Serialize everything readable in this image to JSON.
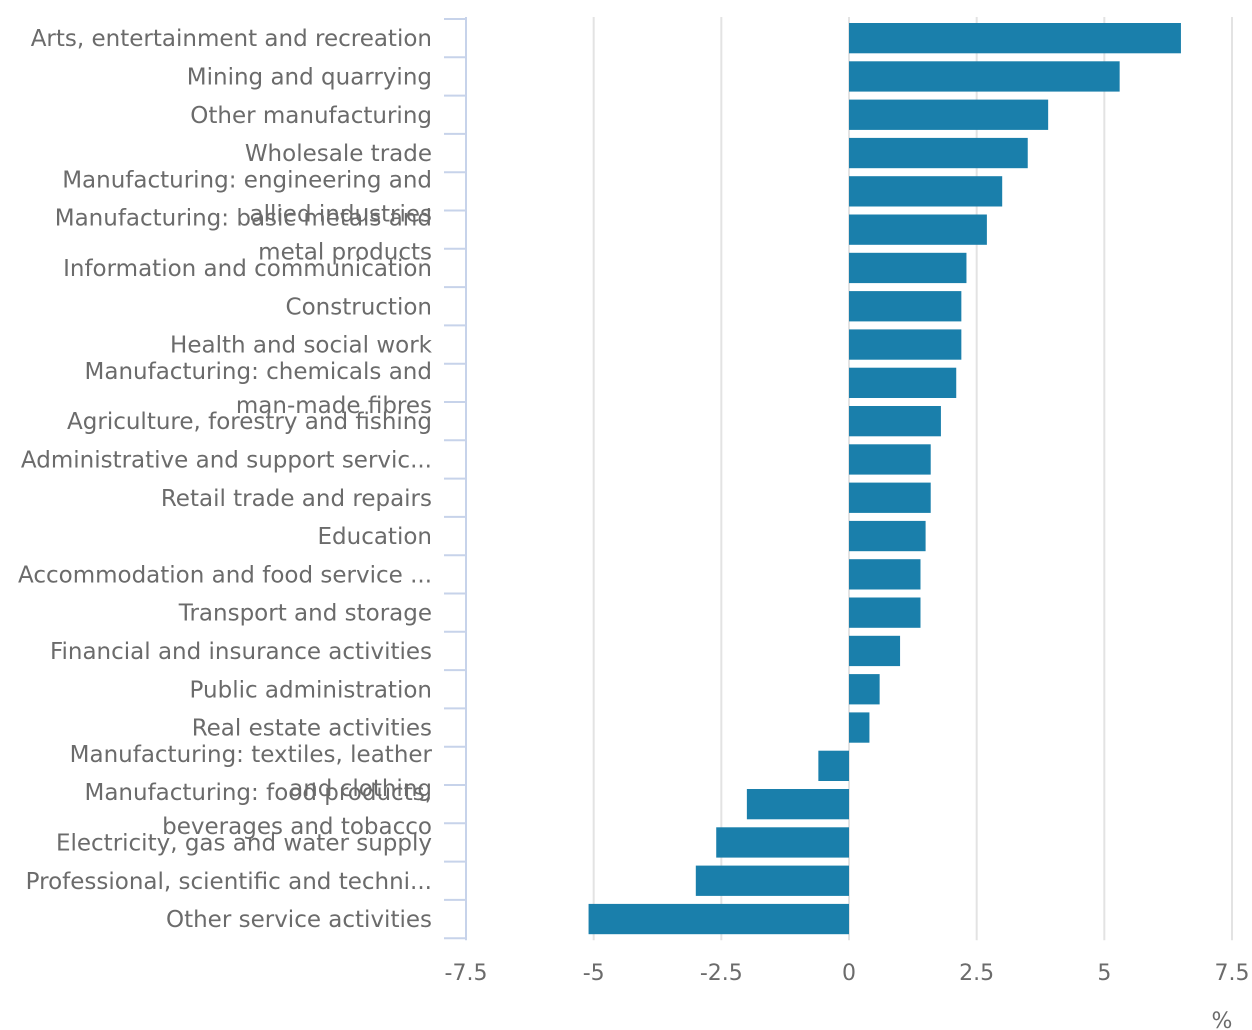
{
  "chart_data": {
    "type": "bar",
    "orientation": "horizontal",
    "categories": [
      "Arts, entertainment and recreation",
      "Mining and quarrying",
      "Other manufacturing",
      "Wholesale trade",
      "Manufacturing: engineering and allied industries",
      "Manufacturing: basic metals and metal products",
      "Information and communication",
      "Construction",
      "Health and social work",
      "Manufacturing: chemicals and man-made fibres",
      "Agriculture, forestry and fishing",
      "Administrative and support servic...",
      "Retail trade and repairs",
      "Education",
      "Accommodation and food service ...",
      "Transport and storage",
      "Financial and insurance activities",
      "Public administration",
      "Real estate activities",
      "Manufacturing: textiles, leather and clothing",
      "Manufacturing: food products, beverages and tobacco",
      "Electricity, gas and water supply",
      "Professional, scientific and techni...",
      "Other service activities"
    ],
    "label_lines": [
      [
        "Arts, entertainment and recreation"
      ],
      [
        "Mining and quarrying"
      ],
      [
        "Other manufacturing"
      ],
      [
        "Wholesale trade"
      ],
      [
        "Manufacturing: engineering and",
        "allied industries"
      ],
      [
        "Manufacturing: basic metals and",
        "metal products"
      ],
      [
        "Information and communication"
      ],
      [
        "Construction"
      ],
      [
        "Health and social work"
      ],
      [
        "Manufacturing: chemicals and",
        "man-made fibres"
      ],
      [
        "Agriculture, forestry and fishing"
      ],
      [
        "Administrative and support servic..."
      ],
      [
        "Retail trade and repairs"
      ],
      [
        "Education"
      ],
      [
        "Accommodation and food service ..."
      ],
      [
        "Transport and storage"
      ],
      [
        "Financial and insurance activities"
      ],
      [
        "Public administration"
      ],
      [
        "Real estate activities"
      ],
      [
        "Manufacturing: textiles, leather",
        "and clothing"
      ],
      [
        "Manufacturing: food products,",
        "beverages and tobacco"
      ],
      [
        "Electricity, gas and water supply"
      ],
      [
        "Professional, scientific and techni..."
      ],
      [
        "Other service activities"
      ]
    ],
    "values": [
      6.5,
      5.3,
      3.9,
      3.5,
      3.0,
      2.7,
      2.3,
      2.2,
      2.2,
      2.1,
      1.8,
      1.6,
      1.6,
      1.5,
      1.4,
      1.4,
      1.0,
      0.6,
      0.4,
      -0.6,
      -2.0,
      -2.6,
      -3.0,
      -5.1
    ],
    "xlim": [
      -7.5,
      7.5
    ],
    "xticks": [
      -7.5,
      -5,
      -2.5,
      0,
      2.5,
      5,
      7.5
    ],
    "xtick_labels": [
      "-7.5",
      "-5",
      "-2.5",
      "0",
      "2.5",
      "5",
      "7.5"
    ],
    "xlabel": "%",
    "grid": true,
    "colors": {
      "bar": "#1a7fab",
      "grid": "#e3e3e3",
      "axis": "#c7d3ea",
      "text": "#6b6b6b"
    }
  }
}
